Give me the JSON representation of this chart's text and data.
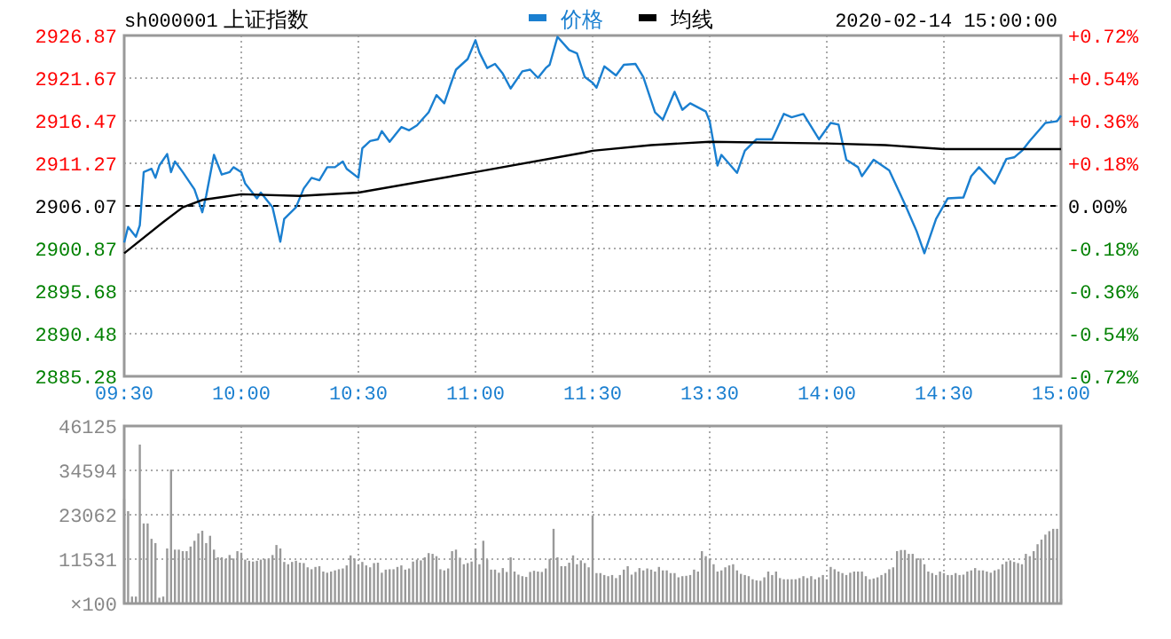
{
  "chart_data": [
    {
      "type": "line",
      "title": "上证指数",
      "subtitle": "sh000001",
      "annotations": [
        "2020-02-14 15:00:00"
      ],
      "legend": "top",
      "grid": true,
      "line_style": "solid",
      "categories": [
        "09:30",
        null,
        null,
        null,
        null,
        null,
        null,
        null,
        null,
        null,
        null,
        null,
        null,
        null,
        null,
        null,
        null,
        null,
        null,
        null,
        null,
        null,
        null,
        null,
        null,
        null,
        null,
        null,
        null,
        null,
        "10:00",
        null,
        null,
        null,
        null,
        null,
        null,
        null,
        null,
        null,
        null,
        null,
        null,
        null,
        null,
        null,
        null,
        null,
        null,
        null,
        null,
        null,
        null,
        null,
        null,
        null,
        null,
        null,
        null,
        null,
        "10:30",
        null,
        null,
        null,
        null,
        null,
        null,
        null,
        null,
        null,
        null,
        null,
        null,
        null,
        null,
        null,
        null,
        null,
        null,
        null,
        null,
        null,
        null,
        null,
        null,
        null,
        null,
        null,
        null,
        null,
        "11:00",
        null,
        null,
        null,
        null,
        null,
        null,
        null,
        null,
        null,
        null,
        null,
        null,
        null,
        null,
        null,
        null,
        null,
        null,
        null,
        null,
        null,
        null,
        null,
        null,
        null,
        null,
        null,
        null,
        null,
        "11:30",
        null,
        null,
        null,
        null,
        null,
        null,
        null,
        null,
        null,
        null,
        null,
        null,
        null,
        null,
        null,
        null,
        null,
        null,
        null,
        null,
        null,
        null,
        null,
        null,
        null,
        null,
        null,
        null,
        null,
        "13:30",
        null,
        null,
        null,
        null,
        null,
        null,
        null,
        null,
        null,
        null,
        null,
        null,
        null,
        null,
        null,
        null,
        null,
        null,
        null,
        null,
        null,
        null,
        null,
        null,
        null,
        null,
        null,
        null,
        null,
        "14:00",
        null,
        null,
        null,
        null,
        null,
        null,
        null,
        null,
        null,
        null,
        null,
        null,
        null,
        null,
        null,
        null,
        null,
        null,
        null,
        null,
        null,
        null,
        null,
        null,
        null,
        null,
        null,
        null,
        null,
        "14:30",
        null,
        null,
        null,
        null,
        null,
        null,
        null,
        null,
        null,
        null,
        null,
        null,
        null,
        null,
        null,
        null,
        null,
        null,
        null,
        null,
        null,
        null,
        null,
        null,
        null,
        null,
        null,
        null,
        null,
        "15:00"
      ],
      "ylim": [
        2885.28,
        2926.87
      ],
      "yticks": [
        2885.28,
        2890.48,
        2895.68,
        2900.87,
        2906.07,
        2911.27,
        2916.47,
        2921.67,
        2926.87
      ],
      "y2lim": [
        -0.72,
        0.72
      ],
      "y2ticks": [
        {
          "value": -0.72,
          "label": "-0.72%"
        },
        {
          "value": -0.54,
          "label": "-0.54%"
        },
        {
          "value": -0.36,
          "label": "-0.36%"
        },
        {
          "value": -0.18,
          "label": "-0.18%"
        },
        {
          "value": 0,
          "label": "0.00%"
        },
        {
          "value": 0.18,
          "label": "+0.18%"
        },
        {
          "value": 0.36,
          "label": "+0.36%"
        },
        {
          "value": 0.54,
          "label": "+0.54%"
        },
        {
          "value": 0.72,
          "label": "+0.72%"
        }
      ],
      "ref_lines": [
        {
          "axis": "y",
          "value": 2906.07,
          "color": "#000000",
          "line_style": "dashed"
        }
      ],
      "series": [
        {
          "name": "价格",
          "color": "#1a7fd0",
          "values": [
            2901.6,
            2903.5,
            null,
            2902.3,
            2903.7,
            2910.2,
            null,
            2910.6,
            2909.5,
            2911.0,
            null,
            2912.4,
            2910.2,
            2911.5,
            null,
            2910.2,
            null,
            null,
            2908.1,
            null,
            2905.3,
            2907.3,
            null,
            2912.3,
            null,
            2909.9,
            null,
            2910.2,
            2910.8,
            null,
            2910.2,
            2908.8,
            null,
            null,
            2907.0,
            2907.7,
            null,
            null,
            2905.9,
            null,
            2901.7,
            2904.5,
            null,
            null,
            2905.9,
            null,
            2908.2,
            null,
            2909.5,
            null,
            2909.2,
            null,
            2910.8,
            null,
            2910.8,
            null,
            2911.5,
            2910.6,
            null,
            null,
            2909.5,
            2913.1,
            null,
            2914.0,
            null,
            2914.2,
            2915.2,
            null,
            2913.9,
            null,
            null,
            2915.7,
            null,
            2915.3,
            null,
            2915.9,
            null,
            null,
            2917.5,
            null,
            2919.6,
            null,
            2918.6,
            null,
            2921.4,
            2922.7,
            null,
            null,
            2924.0,
            null,
            2926.3,
            2924.8,
            null,
            2922.9,
            null,
            2923.4,
            null,
            2922.2,
            null,
            2920.4,
            null,
            null,
            2922.5,
            null,
            2922.7,
            null,
            2921.7,
            null,
            2922.9,
            2923.3,
            null,
            2926.7,
            null,
            null,
            2925.1,
            null,
            2924.7,
            null,
            2921.8,
            null,
            2921.1,
            2920.5,
            null,
            2923.1,
            null,
            null,
            2922.0,
            null,
            2923.3,
            null,
            null,
            2923.4,
            null,
            2921.8,
            null,
            null,
            2917.5,
            null,
            2916.6,
            null,
            null,
            2920.0,
            null,
            2917.8,
            null,
            2918.6,
            null,
            null,
            null,
            2917.6,
            2916.4,
            null,
            2911.0,
            2912.3,
            null,
            null,
            null,
            2910.1,
            null,
            2912.8,
            null,
            null,
            2914.2,
            null,
            null,
            null,
            2914.2,
            null,
            null,
            2917.3,
            null,
            2916.9,
            null,
            null,
            2917.3,
            null,
            null,
            null,
            2914.2,
            null,
            null,
            2916.2,
            null,
            2916.0,
            null,
            2911.7,
            null,
            null,
            2910.8,
            2909.7,
            null,
            null,
            2911.7,
            null,
            null,
            null,
            2910.4,
            null,
            null,
            null,
            2906.3,
            null,
            null,
            2903.0,
            null,
            2900.3,
            null,
            null,
            2904.5,
            null,
            null,
            2907.0,
            null,
            null,
            null,
            2907.1,
            null,
            2909.7,
            null,
            2910.8,
            null,
            null,
            null,
            2908.8,
            null,
            null,
            2911.8,
            null,
            2912.0,
            null,
            2912.8,
            null,
            2914.0,
            null,
            null,
            null,
            2916.2,
            null,
            null,
            2916.4,
            2917.1
          ]
        },
        {
          "name": "均线",
          "color": "#000000",
          "values": [
            2900.3,
            null,
            null,
            null,
            null,
            null,
            null,
            null,
            null,
            null,
            2904.1,
            null,
            null,
            null,
            null,
            2905.9,
            null,
            null,
            null,
            null,
            2906.8,
            null,
            null,
            null,
            null,
            null,
            null,
            null,
            null,
            null,
            2907.5,
            null,
            null,
            null,
            null,
            null,
            null,
            null,
            null,
            null,
            null,
            null,
            null,
            null,
            null,
            2907.3,
            null,
            null,
            null,
            null,
            null,
            null,
            null,
            null,
            null,
            null,
            null,
            null,
            null,
            null,
            2907.7,
            null,
            null,
            null,
            null,
            null,
            null,
            null,
            null,
            null,
            null,
            null,
            null,
            null,
            null,
            null,
            null,
            null,
            null,
            null,
            null,
            null,
            null,
            null,
            null,
            null,
            null,
            null,
            null,
            null,
            2910.2,
            null,
            null,
            null,
            null,
            null,
            null,
            null,
            null,
            null,
            null,
            null,
            null,
            null,
            null,
            null,
            null,
            null,
            null,
            null,
            null,
            null,
            null,
            null,
            null,
            null,
            null,
            null,
            2912.6,
            null,
            2912.8,
            null,
            null,
            null,
            null,
            null,
            null,
            null,
            null,
            null,
            null,
            null,
            null,
            null,
            null,
            2913.5,
            null,
            null,
            null,
            null,
            null,
            null,
            null,
            null,
            null,
            null,
            null,
            null,
            null,
            null,
            2913.9,
            null,
            null,
            null,
            null,
            null,
            null,
            null,
            null,
            null,
            null,
            null,
            null,
            null,
            null,
            null,
            null,
            null,
            null,
            null,
            null,
            null,
            null,
            null,
            null,
            null,
            null,
            null,
            null,
            null,
            2913.7,
            null,
            null,
            null,
            null,
            null,
            null,
            null,
            null,
            null,
            null,
            null,
            null,
            null,
            null,
            2913.5,
            null,
            null,
            null,
            null,
            null,
            null,
            null,
            null,
            null,
            null,
            null,
            null,
            null,
            null,
            2913.0,
            null,
            null,
            null,
            null,
            null,
            null,
            null,
            null,
            null,
            null,
            null,
            null,
            null,
            null,
            null,
            null,
            null,
            null,
            null,
            null,
            null,
            null,
            null,
            null,
            null,
            null,
            null,
            null,
            null,
            2913.0
          ]
        }
      ]
    },
    {
      "type": "bar",
      "grid": true,
      "tick_labels": "y",
      "ylabel": "×100",
      "categories": [
        null,
        null,
        null,
        null,
        null,
        null,
        null,
        null,
        null,
        null,
        null,
        null,
        null,
        null,
        null,
        null,
        null,
        null,
        null,
        null,
        null,
        null,
        null,
        null,
        null,
        null,
        null,
        null,
        null,
        null,
        null,
        null,
        null,
        null,
        null,
        null,
        null,
        null,
        null,
        null,
        null,
        null,
        null,
        null,
        null,
        null,
        null,
        null,
        null,
        null,
        null,
        null,
        null,
        null,
        null,
        null,
        null,
        null,
        null,
        null,
        null,
        null,
        null,
        null,
        null,
        null,
        null,
        null,
        null,
        null,
        null,
        null,
        null,
        null,
        null,
        null,
        null,
        null,
        null,
        null,
        null,
        null,
        null,
        null,
        null,
        null,
        null,
        null,
        null,
        null,
        null,
        null,
        null,
        null,
        null,
        null,
        null,
        null,
        null,
        null,
        null,
        null,
        null,
        null,
        null,
        null,
        null,
        null,
        null,
        null,
        null,
        null,
        null,
        null,
        null,
        null,
        null,
        null,
        null,
        null,
        null,
        null,
        null,
        null,
        null,
        null,
        null,
        null,
        null,
        null,
        null,
        null,
        null,
        null,
        null,
        null,
        null,
        null,
        null,
        null,
        null,
        null,
        null,
        null,
        null,
        null,
        null,
        null,
        null,
        null,
        null,
        null,
        null,
        null,
        null,
        null,
        null,
        null,
        null,
        null,
        null,
        null,
        null,
        null,
        null,
        null,
        null,
        null,
        null,
        null,
        null,
        null,
        null,
        null,
        null,
        null,
        null,
        null,
        null,
        null,
        null,
        null,
        null,
        null,
        null,
        null,
        null,
        null,
        null,
        null,
        null,
        null,
        null,
        null,
        null,
        null,
        null,
        null,
        null,
        null,
        null,
        null,
        null,
        null,
        null,
        null,
        null,
        null,
        null,
        null,
        null,
        null,
        null,
        null,
        null,
        null,
        null,
        null,
        null,
        null,
        null,
        null,
        null,
        null,
        null,
        null,
        null,
        null,
        null,
        null,
        null,
        null,
        null,
        null,
        null,
        null,
        null,
        null,
        null,
        null,
        null
      ],
      "ylim": [
        0,
        46125
      ],
      "yticks": [
        11531,
        23062,
        34594,
        46125
      ],
      "series": [
        {
          "color": "#999999",
          "values": [
            27100,
            24000,
            1800,
            1800,
            41300,
            20800,
            20800,
            16800,
            15700,
            1500,
            1800,
            14300,
            34800,
            14000,
            14000,
            13600,
            13600,
            14800,
            16300,
            18200,
            18900,
            15700,
            17600,
            14000,
            12000,
            12000,
            11600,
            12600,
            11700,
            13600,
            13200,
            11400,
            11100,
            10900,
            11100,
            11400,
            11600,
            11700,
            12600,
            15200,
            14300,
            10800,
            10200,
            10800,
            11100,
            10600,
            10500,
            9400,
            8900,
            9500,
            9700,
            8300,
            8000,
            8300,
            8600,
            8900,
            9100,
            9900,
            12500,
            11700,
            10200,
            10800,
            9900,
            9400,
            10500,
            10600,
            8000,
            8800,
            8900,
            8900,
            9500,
            9900,
            8800,
            9100,
            10900,
            11400,
            11200,
            12000,
            13100,
            12900,
            12300,
            8900,
            8600,
            9100,
            13600,
            14000,
            11900,
            10200,
            10500,
            10900,
            14300,
            10200,
            16300,
            11400,
            8800,
            8800,
            8000,
            9200,
            8200,
            12000,
            8300,
            7500,
            7100,
            6900,
            8200,
            8500,
            8300,
            8200,
            9100,
            11600,
            19400,
            12000,
            9700,
            9700,
            10600,
            12500,
            10200,
            11200,
            10500,
            9400,
            22900,
            7900,
            7900,
            7400,
            7100,
            7400,
            6600,
            7400,
            8800,
            9700,
            7500,
            8200,
            9200,
            8600,
            9100,
            8800,
            8300,
            9500,
            8600,
            8600,
            7900,
            7900,
            6800,
            7100,
            7200,
            7400,
            8800,
            8300,
            13600,
            12300,
            11700,
            10200,
            8300,
            8600,
            9400,
            9900,
            10200,
            8600,
            7700,
            7400,
            7100,
            6300,
            6000,
            5900,
            6800,
            8300,
            7400,
            8300,
            6600,
            6300,
            6300,
            6300,
            6300,
            6600,
            7100,
            6600,
            7100,
            6300,
            6800,
            7400,
            6300,
            9500,
            8900,
            8300,
            7900,
            7400,
            8000,
            8300,
            8300,
            8300,
            7100,
            6300,
            6500,
            6800,
            7400,
            7900,
            8900,
            9400,
            13600,
            13900,
            13900,
            12900,
            12900,
            11700,
            11700,
            10200,
            8300,
            7900,
            7400,
            8300,
            7900,
            7400,
            7400,
            7900,
            7400,
            7500,
            8300,
            8600,
            9200,
            8600,
            8600,
            8300,
            8000,
            8600,
            8900,
            10200,
            10900,
            11200,
            10800,
            10500,
            10200,
            12900,
            12300,
            13600,
            15400,
            16600,
            17900,
            18800,
            19400,
            19400,
            1200
          ]
        }
      ]
    }
  ]
}
